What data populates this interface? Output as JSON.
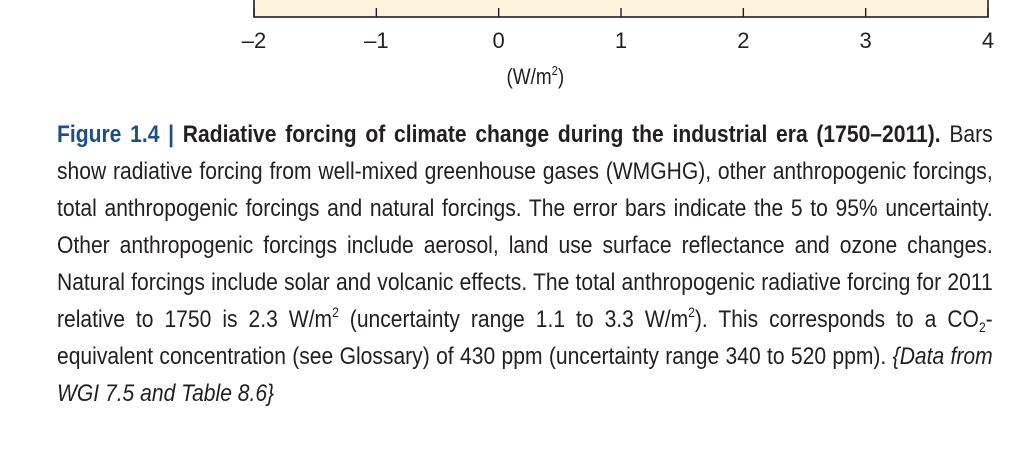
{
  "chart_data": {
    "type": "bar",
    "xlim": [
      -2,
      4
    ],
    "xticks": [
      "–2",
      "–1",
      "0",
      "1",
      "2",
      "3",
      "4"
    ],
    "xlabel": "(W/m²)",
    "plot_fill": "#fdf3dc",
    "axis_color": "#231f20"
  },
  "axis_label": {
    "prefix": "(W/m",
    "sup": "2",
    "suffix": ")"
  },
  "caption": {
    "figure_number": "Figure 1.4 |",
    "title": "Radiative forcing of climate change during the industrial era (1750–2011).",
    "text_1": "Bars show radiative forcing from well-mixed greenhouse gases (WMGHG), other anthropogenic forcings, total anthropogenic forcings and natural forcings. The error bars indicate the 5 to 95% uncertainty. Other anthropogenic forcings include aerosol, land use surface reflectance and ozone changes. Natural forcings include solar and volcanic effects. The total anthropogenic radiative forcing for 2011 relative to 1750 is 2.3 W/m",
    "sup_1": "2",
    "text_2": "(uncertainty range 1.1 to 3.3 W/m",
    "sup_2": "2",
    "text_3": "). This corresponds to a CO",
    "sub_1": "2",
    "text_4": "-equivalent concentration (see Glossary) of 430 ppm (uncertainty range 340 to 520 ppm).",
    "source_ref": "{Data from WGI 7.5 and Table 8.6}"
  }
}
